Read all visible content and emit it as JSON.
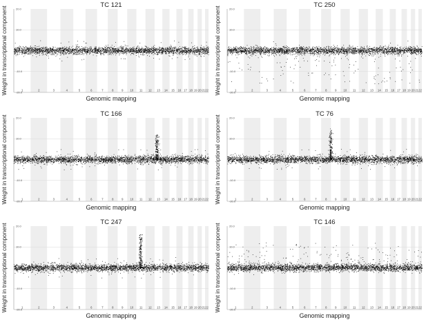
{
  "figure": {
    "chromosomes": [
      "1",
      "2",
      "3",
      "4",
      "5",
      "6",
      "7",
      "8",
      "9",
      "10",
      "11",
      "12",
      "13",
      "14",
      "15",
      "16",
      "17",
      "18",
      "19",
      "20",
      "21",
      "22"
    ],
    "chromosome_weights": [
      249,
      243,
      198,
      191,
      181,
      171,
      159,
      146,
      141,
      136,
      135,
      134,
      115,
      107,
      102,
      90,
      84,
      80,
      59,
      63,
      48,
      51
    ],
    "stripe_color": "#eeeeee",
    "point_color": "#000000"
  },
  "chart_data": [
    {
      "type": "scatter",
      "title": "TC 121",
      "xlabel": "Genomic mapping",
      "ylabel": "Weight in transcriptional component",
      "ylim": [
        -20,
        20
      ],
      "yticks": [
        "-20.0",
        "-10.0",
        "0.0",
        "10.0",
        "20.0"
      ],
      "gridlines": [
        -10,
        0,
        10
      ],
      "baseline_sd": 1.0,
      "outliers": "sparse scattered points up to about +/-5",
      "peaks": []
    },
    {
      "type": "scatter",
      "title": "TC 250",
      "xlabel": "Genomic mapping",
      "ylabel": "Weight in transcriptional component",
      "ylim": [
        -20,
        20
      ],
      "yticks": [
        "-20.0",
        "-10.0",
        "0.0",
        "10.0",
        "20.0"
      ],
      "gridlines": [
        -10,
        0,
        10
      ],
      "baseline_sd": 1.0,
      "outliers": "many scattered points below baseline down to about -16",
      "peaks": []
    },
    {
      "type": "scatter",
      "title": "TC 166",
      "xlabel": "Genomic mapping",
      "ylabel": "Weight in transcriptional component",
      "ylim": [
        -20,
        20
      ],
      "yticks": [
        "-20.0",
        "-10.0",
        "0.0",
        "10.0",
        "20.0"
      ],
      "gridlines": [
        -10,
        0,
        10
      ],
      "baseline_sd": 1.0,
      "outliers": "few scattered points",
      "peaks": [
        {
          "chromosome": "13",
          "position": 0.3,
          "max_weight": 12
        }
      ]
    },
    {
      "type": "scatter",
      "title": "TC 76",
      "xlabel": "Genomic mapping",
      "ylabel": "Weight in transcriptional component",
      "ylim": [
        -20,
        20
      ],
      "yticks": [
        "-20.0",
        "-10.0",
        "0.0",
        "10.0",
        "20.0"
      ],
      "gridlines": [
        -10,
        0,
        10
      ],
      "baseline_sd": 1.0,
      "outliers": "few scattered points",
      "peaks": [
        {
          "chromosome": "8",
          "position": 0.95,
          "max_weight": 15
        }
      ]
    },
    {
      "type": "scatter",
      "title": "TC 247",
      "xlabel": "Genomic mapping",
      "ylabel": "Weight in transcriptional component",
      "ylim": [
        -20,
        20
      ],
      "yticks": [
        "-20.0",
        "-10.0",
        "0.0",
        "10.0",
        "20.0"
      ],
      "gridlines": [
        -10,
        0,
        10
      ],
      "baseline_sd": 1.0,
      "outliers": "few scattered points",
      "peaks": [
        {
          "chromosome": "11",
          "position": 0.45,
          "max_weight": 16
        }
      ]
    },
    {
      "type": "scatter",
      "title": "TC 146",
      "xlabel": "Genomic mapping",
      "ylabel": "Weight in transcriptional component",
      "ylim": [
        -20,
        20
      ],
      "yticks": [
        "-20.0",
        "-10.0",
        "0.0",
        "10.0",
        "20.0"
      ],
      "gridlines": [
        -10,
        0,
        10
      ],
      "baseline_sd": 1.0,
      "outliers": "many scattered points above baseline up to about +12",
      "peaks": []
    }
  ]
}
